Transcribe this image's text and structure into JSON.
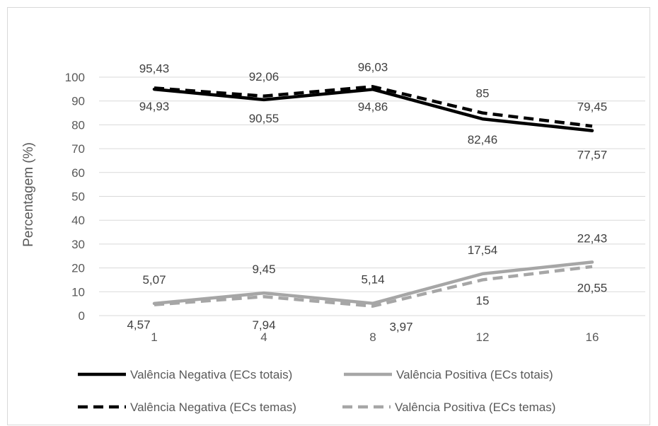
{
  "chart_data": {
    "type": "line",
    "title": "",
    "xlabel": "",
    "ylabel": "Percentagem (%)",
    "ylim": [
      0,
      100
    ],
    "yticks": [
      0,
      10,
      20,
      30,
      40,
      50,
      60,
      70,
      80,
      90,
      100
    ],
    "categories": [
      "1",
      "4",
      "8",
      "12",
      "16"
    ],
    "grid": "horizontal",
    "legend_position": "bottom",
    "series": [
      {
        "name": "Valência Negativa (ECs totais)",
        "values": [
          94.93,
          90.55,
          94.86,
          82.46,
          77.57
        ],
        "labels": [
          "94,93",
          "90,55",
          "94,86",
          "82,46",
          "77,57"
        ],
        "color": "#000000",
        "style": "solid"
      },
      {
        "name": "Valência Positiva (ECs totais)",
        "values": [
          5.07,
          9.45,
          5.14,
          17.54,
          22.43
        ],
        "labels": [
          "5,07",
          "9,45",
          "5,14",
          "17,54",
          "22,43"
        ],
        "color": "#a6a6a6",
        "style": "solid"
      },
      {
        "name": "Valência Negativa (ECs temas)",
        "values": [
          95.43,
          92.06,
          96.03,
          85,
          79.45
        ],
        "labels": [
          "95,43",
          "92,06",
          "96,03",
          "85",
          "79,45"
        ],
        "color": "#000000",
        "style": "dashed"
      },
      {
        "name": "Valência Positiva (ECs temas)",
        "values": [
          4.57,
          7.94,
          3.97,
          15,
          20.55
        ],
        "labels": [
          "4,57",
          "7,94",
          "3,97",
          "15",
          "20,55"
        ],
        "color": "#a6a6a6",
        "style": "dashed"
      }
    ]
  }
}
